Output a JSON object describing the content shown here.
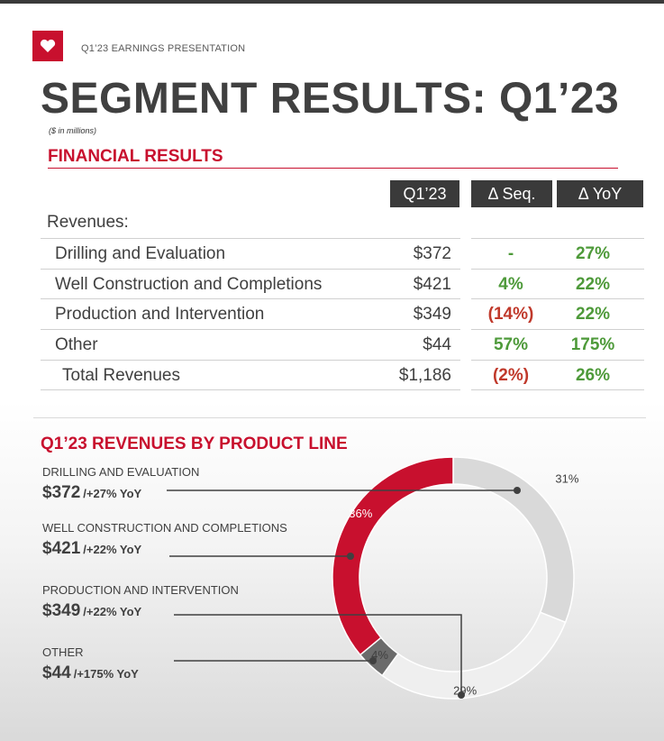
{
  "header": {
    "kicker": "Q1’23 EARNINGS PRESENTATION",
    "title": "SEGMENT RESULTS: Q1’23",
    "subtitle": "($ in millions)"
  },
  "financial": {
    "section_title": "FINANCIAL RESULTS",
    "columns": [
      "Q1’23",
      "Δ Seq.",
      "Δ YoY"
    ],
    "revenues_label": "Revenues:",
    "rows": [
      {
        "name": "Drilling and Evaluation",
        "value": "$372",
        "seq": "-",
        "yoy": "27%"
      },
      {
        "name": "Well Construction and Completions",
        "value": "$421",
        "seq": "4%",
        "yoy": "22%"
      },
      {
        "name": "Production and Intervention",
        "value": "$349",
        "seq": "(14%)",
        "yoy": "22%"
      },
      {
        "name": "Other",
        "value": "$44",
        "seq": "57%",
        "yoy": "175%"
      },
      {
        "name": "Total Revenues",
        "value": "$1,186",
        "seq": "(2%)",
        "yoy": "26%"
      }
    ],
    "colors": {
      "positive": "#4e9a3a",
      "negative": "#c0392b"
    }
  },
  "product_line": {
    "section_title": "Q1’23 REVENUES BY PRODUCT LINE",
    "segments": [
      {
        "name": "DRILLING AND EVALUATION",
        "amount": "$372",
        "yoy": "/+27% YoY"
      },
      {
        "name": "WELL CONSTRUCTION AND COMPLETIONS",
        "amount": "$421",
        "yoy": "/+22% YoY"
      },
      {
        "name": "PRODUCTION AND INTERVENTION",
        "amount": "$349",
        "yoy": "/+22% YoY"
      },
      {
        "name": "OTHER",
        "amount": "$44",
        "yoy": "/+175% YoY"
      }
    ]
  },
  "chart_data": {
    "type": "pie",
    "variant": "donut",
    "title": "Q1’23 REVENUES BY PRODUCT LINE",
    "slices": [
      {
        "label": "DRILLING AND EVALUATION",
        "value": 31,
        "display": "31%",
        "color": "#d9d9d9"
      },
      {
        "label": "PRODUCTION AND INTERVENTION",
        "value": 29,
        "display": "29%",
        "color": "#efefef"
      },
      {
        "label": "OTHER",
        "value": 4,
        "display": "4%",
        "color": "#6b6b6b"
      },
      {
        "label": "WELL CONSTRUCTION AND COMPLETIONS",
        "value": 36,
        "display": "36%",
        "color": "#c8102e"
      }
    ]
  }
}
